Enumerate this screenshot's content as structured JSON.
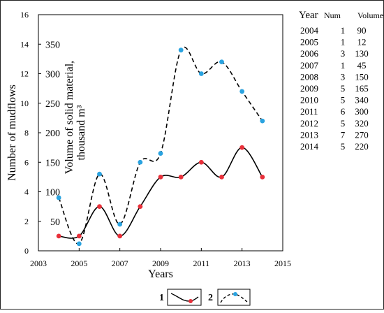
{
  "chart_data": {
    "type": "line",
    "xlabel": "Years",
    "ylabel_left": "Number of mudflows",
    "ylabel_right": "Volume of solid material,",
    "ylabel_right_unit": "thousand m³",
    "x_ticks": [
      "2003",
      "2005",
      "2007",
      "2009",
      "2011",
      "2013",
      "2015"
    ],
    "xlim": [
      2003,
      2015
    ],
    "y_left_ticks": [
      "0",
      "2",
      "4",
      "6",
      "8",
      "10",
      "12",
      "14",
      "16"
    ],
    "ylim_left": [
      0,
      16
    ],
    "y_right_ticks": [
      "50",
      "100",
      "150",
      "200",
      "250",
      "300",
      "350"
    ],
    "ylim_right": [
      0,
      400
    ],
    "x": [
      2004,
      2005,
      2006,
      2007,
      2008,
      2009,
      2010,
      2011,
      2012,
      2013,
      2014
    ],
    "series": [
      {
        "key": "1",
        "axis": "left",
        "style": "solid",
        "color": "#000000",
        "marker_color": "#e8303a",
        "values": [
          1,
          1,
          3,
          1,
          3,
          5,
          5,
          6,
          5,
          7,
          5
        ]
      },
      {
        "key": "2",
        "axis": "right",
        "style": "dashed",
        "color": "#000000",
        "marker_color": "#2aa3e0",
        "values": [
          90,
          12,
          130,
          45,
          150,
          165,
          340,
          300,
          320,
          270,
          220
        ]
      }
    ],
    "legend": {
      "placement": "bottom",
      "labels": [
        "1",
        "2"
      ]
    }
  },
  "table": {
    "header": [
      "Year",
      "Num",
      "Volume"
    ],
    "rows": [
      [
        "2004",
        "1",
        "90"
      ],
      [
        "2005",
        "1",
        "12"
      ],
      [
        "2006",
        "3",
        "130"
      ],
      [
        "2007",
        "1",
        "45"
      ],
      [
        "2008",
        "3",
        "150"
      ],
      [
        "2009",
        "5",
        "165"
      ],
      [
        "2010",
        "5",
        "340"
      ],
      [
        "2011",
        "6",
        "300"
      ],
      [
        "2012",
        "5",
        "320"
      ],
      [
        "2013",
        "7",
        "270"
      ],
      [
        "2014",
        "5",
        "220"
      ]
    ]
  }
}
